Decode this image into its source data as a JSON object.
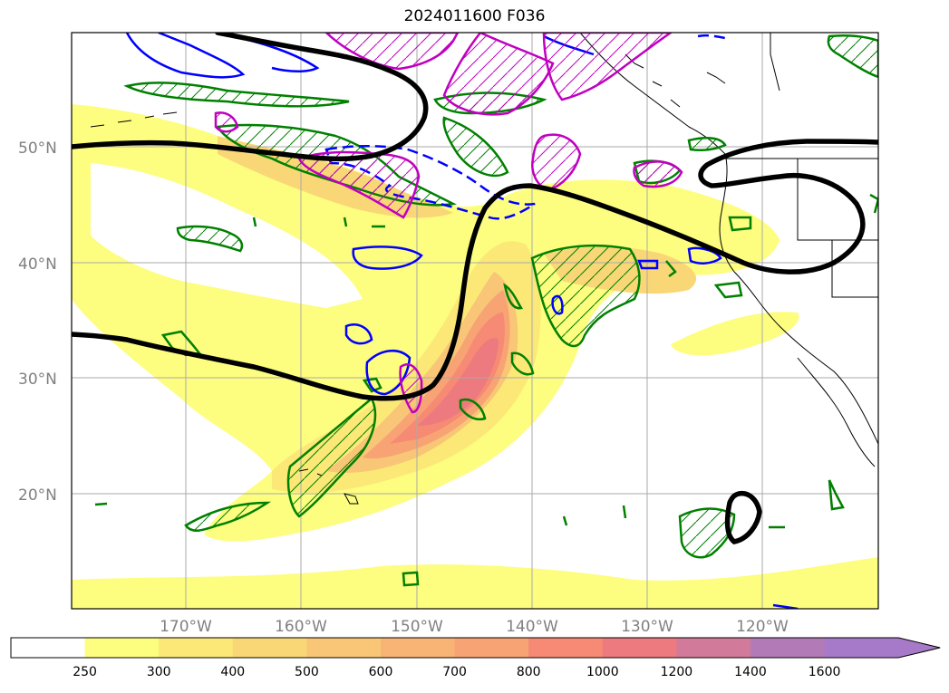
{
  "title": "2024011600 F036",
  "lat_labels": [
    "50°N",
    "40°N",
    "30°N",
    "20°N"
  ],
  "lon_labels": [
    "170°W",
    "160°W",
    "150°W",
    "140°W",
    "130°W",
    "120°W"
  ],
  "colorbar": {
    "labels": [
      "250",
      "300",
      "400",
      "500",
      "600",
      "700",
      "800",
      "1000",
      "1200",
      "1400",
      "1600"
    ],
    "colors": [
      "#ffffff",
      "#fdfd80",
      "#fbe877",
      "#f9d777",
      "#f8c676",
      "#f7b474",
      "#f7a374",
      "#f68a74",
      "#ec7a7e",
      "#d27a9a",
      "#b27ab6",
      "#a67ac8"
    ],
    "extend": "max"
  },
  "colors": {
    "contour_black": "#000000",
    "contour_green": "#008000",
    "contour_blue": "#0000ff",
    "contour_magenta": "#c000c0",
    "grid": "#aaaaaa",
    "coastline": "#000000"
  }
}
